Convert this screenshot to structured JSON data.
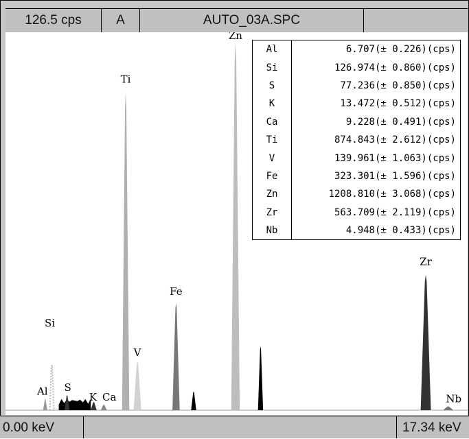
{
  "header": {
    "count_rate": "126.5 cps",
    "mode": "A",
    "filename": "AUTO_03A.SPC"
  },
  "footer": {
    "min_energy": "0.00 keV",
    "max_energy": "17.34 keV"
  },
  "legend": {
    "rows": [
      {
        "el": "Al",
        "value": "6.707(± 0.226)(cps)"
      },
      {
        "el": "Si",
        "value": "126.974(± 0.860)(cps)"
      },
      {
        "el": "S",
        "value": "77.236(± 0.850)(cps)"
      },
      {
        "el": "K",
        "value": "13.472(± 0.512)(cps)"
      },
      {
        "el": "Ca",
        "value": "9.228(± 0.491)(cps)"
      },
      {
        "el": "Ti",
        "value": "874.843(± 2.612)(cps)"
      },
      {
        "el": "V",
        "value": "139.961(± 1.063)(cps)"
      },
      {
        "el": "Fe",
        "value": "323.301(± 1.596)(cps)"
      },
      {
        "el": "Zn",
        "value": "1208.810(± 3.068)(cps)"
      },
      {
        "el": "Zr",
        "value": "563.709(± 2.119)(cps)"
      },
      {
        "el": "Nb",
        "value": "4.948(± 0.433)(cps)"
      }
    ]
  },
  "chart_data": {
    "type": "area",
    "xlim": [
      0,
      17.34
    ],
    "ylim": [
      0,
      1
    ],
    "peaks": [
      {
        "label": "Al",
        "energy": 1.49,
        "height": 0.03,
        "width": 0.05,
        "color": "#9a9a9a",
        "lx": 0,
        "ly": 0
      },
      {
        "label": "Si",
        "energy": 1.74,
        "height": 0.12,
        "width": 0.05,
        "color": "#bdbdbd",
        "lx": 0,
        "ly": 0,
        "dotted": true
      },
      {
        "label": "S",
        "energy": 2.31,
        "height": 0.04,
        "width": 0.06,
        "color": "#333333",
        "lx": 0,
        "ly": 0
      },
      {
        "label": "K",
        "energy": 3.31,
        "height": 0.022,
        "width": 0.07,
        "color": "#333333",
        "lx": 0,
        "ly": 0
      },
      {
        "label": "Ca",
        "energy": 3.69,
        "height": 0.015,
        "width": 0.07,
        "color": "#888888",
        "lx": 0,
        "ly": 0
      },
      {
        "label": "Ti",
        "energy": 4.51,
        "height": 0.846,
        "width": 0.085,
        "color": "#b0b0b0",
        "lx": 0,
        "ly": 0
      },
      {
        "label": "",
        "energy": 4.93,
        "height": 0.09,
        "width": 0.07,
        "color": "#000000"
      },
      {
        "label": "V",
        "energy": 4.95,
        "height": 0.13,
        "width": 0.09,
        "color": "#d2d2d2",
        "lx": 0,
        "ly": 0
      },
      {
        "label": "Fe",
        "energy": 6.4,
        "height": 0.285,
        "width": 0.085,
        "color": "#777777",
        "lx": 0,
        "ly": 0
      },
      {
        "label": "",
        "energy": 7.06,
        "height": 0.05,
        "width": 0.06,
        "color": "#000000"
      },
      {
        "label": "Zn",
        "energy": 8.63,
        "height": 0.98,
        "width": 0.1,
        "color": "#bdbdbd",
        "lx": 0,
        "ly": 0
      },
      {
        "label": "",
        "energy": 9.57,
        "height": 0.17,
        "width": 0.06,
        "color": "#000000"
      },
      {
        "label": "Zr",
        "energy": 15.77,
        "height": 0.36,
        "width": 0.12,
        "color": "#333333",
        "lx": 0,
        "ly": 0
      },
      {
        "label": "Nb",
        "energy": 16.61,
        "height": 0.01,
        "width": 0.12,
        "color": "#777777",
        "lx": 0,
        "ly": 0
      }
    ],
    "low_energy_bump": {
      "start": 2.0,
      "end": 3.2,
      "height": 0.03,
      "color": "#000000"
    }
  }
}
